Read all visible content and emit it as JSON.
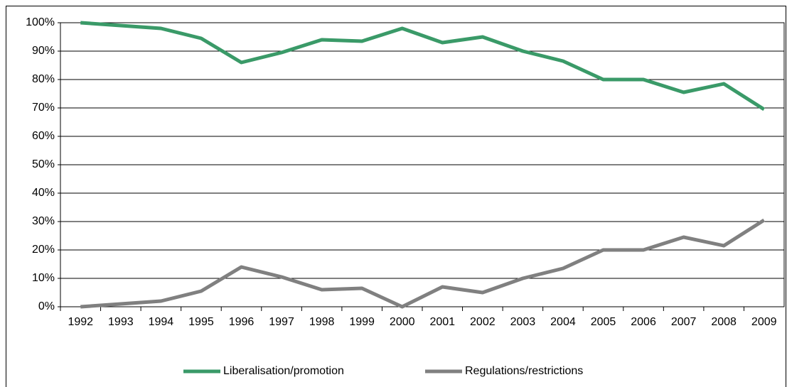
{
  "chart_data": {
    "type": "line",
    "categories": [
      "1992",
      "1993",
      "1994",
      "1995",
      "1996",
      "1997",
      "1998",
      "1999",
      "2000",
      "2001",
      "2002",
      "2003",
      "2004",
      "2005",
      "2006",
      "2007",
      "2008",
      "2009"
    ],
    "series": [
      {
        "name": "Liberalisation/promotion",
        "color": "#3a9a68",
        "values": [
          100,
          99,
          98,
          94.5,
          86,
          89.5,
          94,
          93.5,
          98,
          93,
          95,
          90,
          86.5,
          80,
          80,
          75.5,
          78.5,
          69.5
        ]
      },
      {
        "name": "Regulations/restrictions",
        "color": "#808080",
        "values": [
          0,
          1,
          2,
          5.5,
          14,
          10.5,
          6,
          6.5,
          0,
          7,
          5,
          10,
          13.5,
          20,
          20,
          24.5,
          21.5,
          30.5
        ]
      }
    ],
    "ylim": [
      0,
      100
    ],
    "yticks": [
      {
        "value": 0,
        "label": "0%"
      },
      {
        "value": 10,
        "label": "10%"
      },
      {
        "value": 20,
        "label": "20%"
      },
      {
        "value": 30,
        "label": "30%"
      },
      {
        "value": 40,
        "label": "40%"
      },
      {
        "value": 50,
        "label": "50%"
      },
      {
        "value": 60,
        "label": "60%"
      },
      {
        "value": 70,
        "label": "70%"
      },
      {
        "value": 80,
        "label": "80%"
      },
      {
        "value": 90,
        "label": "90%"
      },
      {
        "value": 100,
        "label": "100%"
      }
    ],
    "grid": true,
    "legend": "bottom"
  }
}
